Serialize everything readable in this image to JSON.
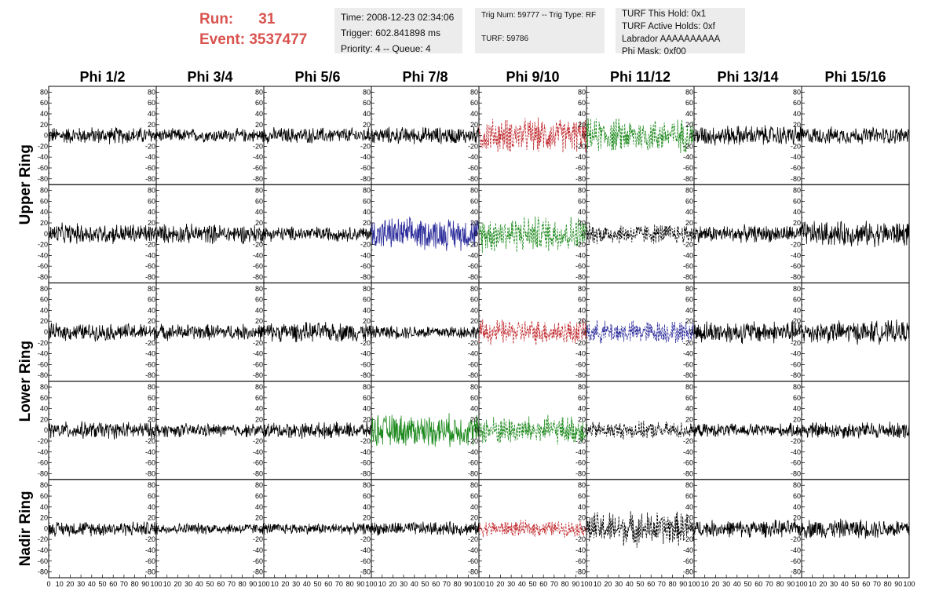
{
  "header": {
    "run_label": "Run:",
    "run_value": "31",
    "event_label": "Event:",
    "event_value": "3537477",
    "time": "Time: 2008-12-23 02:34:06",
    "trigger": "Trigger: 602.841898 ms",
    "priority": "Priority: 4 -- Queue: 4",
    "trig_num": "Trig Num: 59777 -- Trig Type: RF",
    "turf": "TURF: 59786",
    "turf_this_hold": "TURF This Hold: 0x1",
    "turf_active_holds": "TURF Active Holds: 0xf",
    "labrador": "Labrador AAAAAAAAAA",
    "phi_mask": "Phi Mask: 0xf00",
    "accent_color": "#d9534f"
  },
  "chart_data": {
    "type": "line",
    "columns": [
      "Phi 1/2",
      "Phi 3/4",
      "Phi 5/6",
      "Phi 7/8",
      "Phi 9/10",
      "Phi 11/12",
      "Phi 13/14",
      "Phi 15/16"
    ],
    "row_groups": [
      {
        "label": "Upper Ring",
        "rows": 2
      },
      {
        "label": "Lower Ring",
        "rows": 2
      },
      {
        "label": "Nadir Ring",
        "rows": 1
      }
    ],
    "xlim": [
      0,
      100
    ],
    "ylim": [
      -85,
      85
    ],
    "x_ticks": [
      "0",
      "10",
      "20",
      "30",
      "40",
      "50",
      "60",
      "70",
      "80",
      "90",
      "100"
    ],
    "y_ticks": [
      "80",
      "60",
      "40",
      "20",
      "0",
      "-20",
      "-40",
      "-60",
      "-80"
    ],
    "trace_styles": [
      [
        "black",
        "black",
        "black",
        "black",
        "red-dashed",
        "green-dashed",
        "black",
        "black"
      ],
      [
        "black",
        "black",
        "black",
        "blue",
        "green-dashed",
        "black-dashed",
        "black",
        "black"
      ],
      [
        "black",
        "black",
        "black",
        "black",
        "red-dashed",
        "blue-dashed",
        "black",
        "black"
      ],
      [
        "black",
        "black",
        "black",
        "green",
        "green-dashed",
        "black-dashed",
        "black",
        "black"
      ],
      [
        "black",
        "black",
        "black",
        "black",
        "red-dashed",
        "black-dashed",
        "black",
        "black"
      ]
    ],
    "trace_amplitude": [
      [
        15,
        12,
        14,
        15,
        30,
        30,
        18,
        15
      ],
      [
        18,
        17,
        13,
        28,
        32,
        18,
        15,
        22
      ],
      [
        15,
        14,
        17,
        12,
        22,
        20,
        20,
        20
      ],
      [
        15,
        12,
        14,
        28,
        25,
        15,
        12,
        15
      ],
      [
        13,
        10,
        10,
        12,
        14,
        30,
        15,
        17
      ]
    ],
    "colors": {
      "black": "#000000",
      "red": "#c0282d",
      "green": "#1e8a1e",
      "blue": "#2b2b9b"
    }
  }
}
